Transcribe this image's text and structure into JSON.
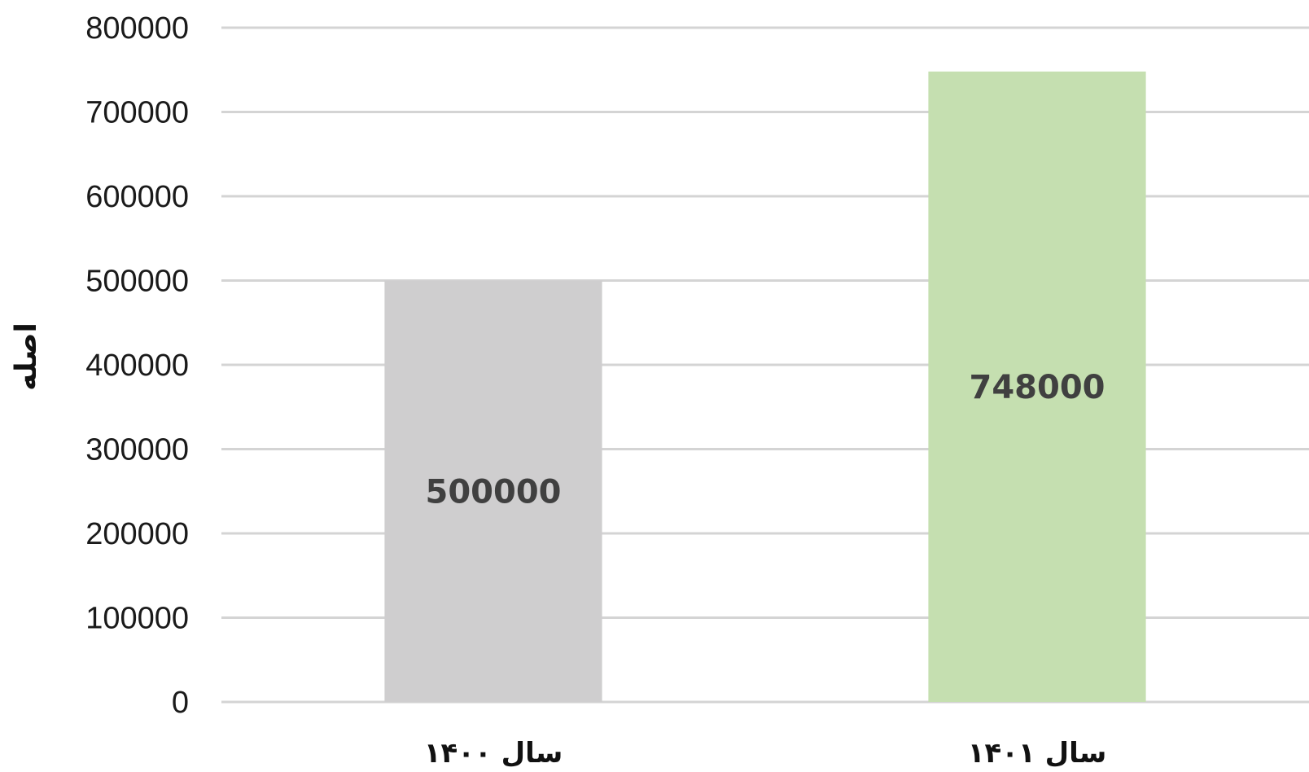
{
  "chart_data": {
    "type": "bar",
    "title": "",
    "xlabel": "",
    "ylabel": "اصله",
    "categories": [
      "سال ۱۴۰۰",
      "سال ۱۴۰۱"
    ],
    "values": [
      500000,
      748000
    ],
    "data_labels": [
      "500000",
      "748000"
    ],
    "bar_colors": [
      "#cfcecf",
      "#c5dfb0"
    ],
    "ylim": [
      0,
      800000
    ],
    "yticks": [
      0,
      100000,
      200000,
      300000,
      400000,
      500000,
      600000,
      700000,
      800000
    ],
    "ytick_labels": [
      "0",
      "100000",
      "200000",
      "300000",
      "400000",
      "500000",
      "600000",
      "700000",
      "800000"
    ],
    "grid": true,
    "legend": "none"
  }
}
